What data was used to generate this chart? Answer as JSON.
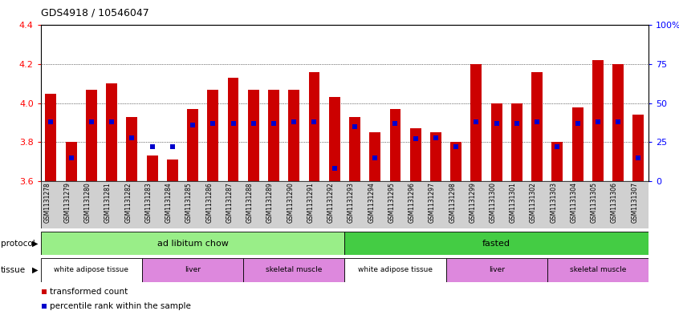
{
  "title": "GDS4918 / 10546047",
  "samples": [
    "GSM1131278",
    "GSM1131279",
    "GSM1131280",
    "GSM1131281",
    "GSM1131282",
    "GSM1131283",
    "GSM1131284",
    "GSM1131285",
    "GSM1131286",
    "GSM1131287",
    "GSM1131288",
    "GSM1131289",
    "GSM1131290",
    "GSM1131291",
    "GSM1131292",
    "GSM1131293",
    "GSM1131294",
    "GSM1131295",
    "GSM1131296",
    "GSM1131297",
    "GSM1131298",
    "GSM1131299",
    "GSM1131300",
    "GSM1131301",
    "GSM1131302",
    "GSM1131303",
    "GSM1131304",
    "GSM1131305",
    "GSM1131306",
    "GSM1131307"
  ],
  "transformed_count": [
    4.05,
    3.8,
    4.07,
    4.1,
    3.93,
    3.73,
    3.71,
    3.97,
    4.07,
    4.13,
    4.07,
    4.07,
    4.07,
    4.16,
    4.03,
    3.93,
    3.85,
    3.97,
    3.87,
    3.85,
    3.8,
    4.2,
    4.0,
    4.0,
    4.16,
    3.8,
    3.98,
    4.22,
    4.2,
    3.94
  ],
  "percentile_rank": [
    38,
    15,
    38,
    38,
    28,
    22,
    22,
    36,
    37,
    37,
    37,
    37,
    38,
    38,
    8,
    35,
    15,
    37,
    27,
    28,
    22,
    38,
    37,
    37,
    38,
    22,
    37,
    38,
    38,
    15
  ],
  "ylim_left": [
    3.6,
    4.4
  ],
  "ylim_right": [
    0,
    100
  ],
  "bar_color": "#cc0000",
  "dot_color": "#0000cc",
  "bar_bottom": 3.6,
  "protocol_groups": [
    {
      "label": "ad libitum chow",
      "start": 0,
      "end": 14,
      "color": "#99ee88"
    },
    {
      "label": "fasted",
      "start": 15,
      "end": 29,
      "color": "#44cc44"
    }
  ],
  "tissue_groups": [
    {
      "label": "white adipose tissue",
      "start": 0,
      "end": 4,
      "color": "#ffffff"
    },
    {
      "label": "liver",
      "start": 5,
      "end": 9,
      "color": "#dd88dd"
    },
    {
      "label": "skeletal muscle",
      "start": 10,
      "end": 14,
      "color": "#dd88dd"
    },
    {
      "label": "white adipose tissue",
      "start": 15,
      "end": 19,
      "color": "#ffffff"
    },
    {
      "label": "liver",
      "start": 20,
      "end": 24,
      "color": "#dd88dd"
    },
    {
      "label": "skeletal muscle",
      "start": 25,
      "end": 29,
      "color": "#dd88dd"
    }
  ],
  "left_yticks": [
    3.6,
    3.8,
    4.0,
    4.2,
    4.4
  ],
  "right_yticks": [
    0,
    25,
    50,
    75,
    100
  ],
  "right_yticklabels": [
    "0",
    "25",
    "50",
    "75",
    "100%"
  ],
  "bar_width": 0.55,
  "dot_size": 4
}
